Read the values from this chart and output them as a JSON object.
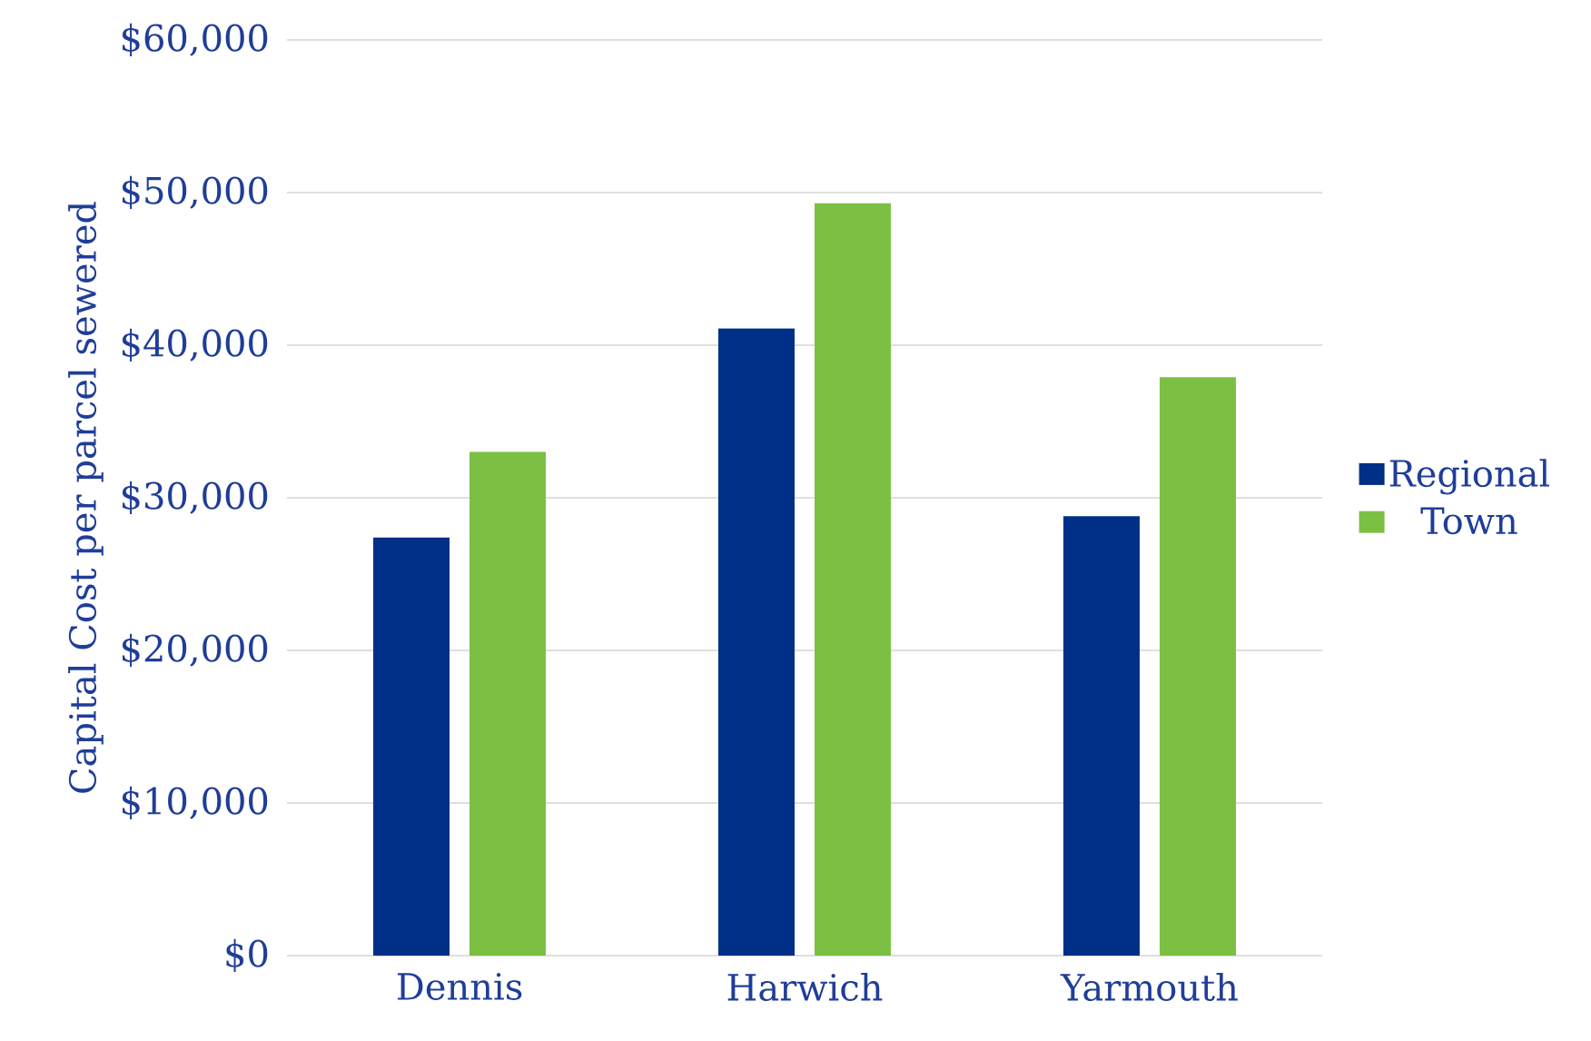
{
  "chart_data": {
    "type": "bar",
    "ylabel": "Capital Cost per parcel sewered",
    "categories": [
      "Dennis",
      "Harwich",
      "Yarmouth"
    ],
    "series": [
      {
        "name": "Regional",
        "color": "#002f87",
        "values": [
          27400,
          41100,
          28800
        ]
      },
      {
        "name": "Town",
        "color": "#7bc043",
        "values": [
          33000,
          49300,
          37900
        ]
      }
    ],
    "ylim": [
      0,
      60000
    ],
    "yticks": [
      {
        "value": 0,
        "label": "$0"
      },
      {
        "value": 10000,
        "label": "$10,000"
      },
      {
        "value": 20000,
        "label": "$20,000"
      },
      {
        "value": 30000,
        "label": "$30,000"
      },
      {
        "value": 40000,
        "label": "$40,000"
      },
      {
        "value": 50000,
        "label": "$50,000"
      },
      {
        "value": 60000,
        "label": "$60,000"
      }
    ],
    "grid": "y",
    "legend": "right"
  }
}
